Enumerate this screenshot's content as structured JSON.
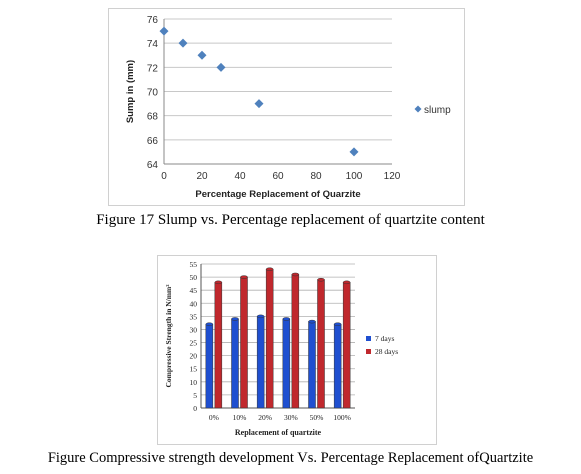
{
  "charts": [
    {
      "type": "scatter",
      "x": [
        0,
        10,
        20,
        30,
        50,
        100
      ],
      "y": [
        75,
        74,
        73,
        72,
        69,
        65
      ],
      "xlabel": "Percentage Replacement of Quarzite",
      "ylabel": "Sump in (mm)",
      "xlim": [
        0,
        120
      ],
      "ylim": [
        64,
        76
      ],
      "xticks": [
        0,
        20,
        40,
        60,
        80,
        100,
        120
      ],
      "yticks": [
        64,
        66,
        68,
        70,
        72,
        74,
        76
      ],
      "grid": "horizontal",
      "legend_position": "right",
      "series": [
        {
          "name": "slump",
          "color": "#4f81bd",
          "marker": "diamond"
        }
      ]
    },
    {
      "type": "bar",
      "categories": [
        "0%",
        "10%",
        "20%",
        "30%",
        "50%",
        "100%"
      ],
      "series": [
        {
          "name": "7 days",
          "values": [
            32,
            34,
            35,
            34,
            33,
            32
          ],
          "color": "#1f4fd0"
        },
        {
          "name": "28 days",
          "values": [
            48,
            50,
            53,
            51,
            49,
            48
          ],
          "color": "#c0282d"
        }
      ],
      "xlabel": "Replacement of quartzite",
      "ylabel": "Compressive Strength in N/mm²",
      "ylim": [
        0,
        55
      ],
      "yticks": [
        0,
        5,
        10,
        15,
        20,
        25,
        30,
        35,
        40,
        45,
        50,
        55
      ],
      "grid": "horizontal",
      "legend_position": "right"
    }
  ],
  "captions": {
    "figure1": "Figure 17 Slump vs. Percentage replacement of quartzite content",
    "figure2": "Figure Compressive strength development Vs. Percentage Replacement ofQuartzite"
  }
}
